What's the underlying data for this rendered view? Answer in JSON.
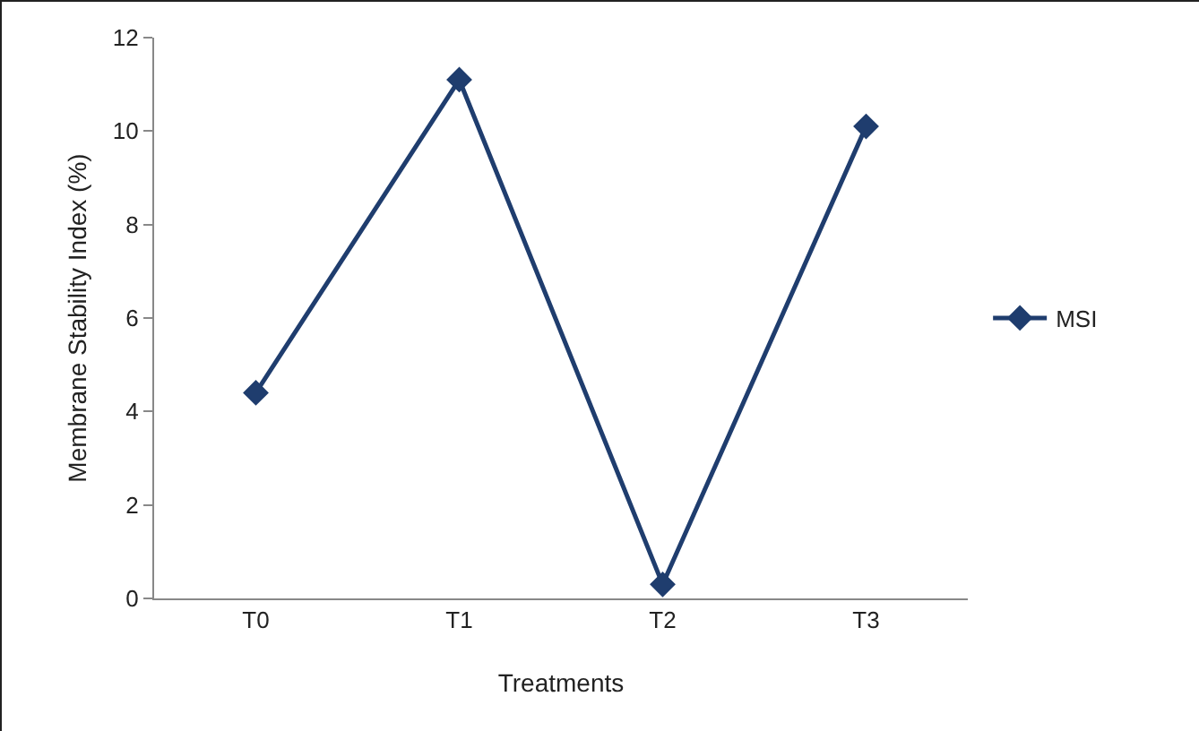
{
  "chart_data": {
    "type": "line",
    "xlabel": "Treatments",
    "ylabel": "Membrane Stability Index (%)",
    "categories": [
      "T0",
      "T1",
      "T2",
      "T3"
    ],
    "series": [
      {
        "name": "MSI",
        "color": "#1f3d6e",
        "values": [
          4.4,
          11.1,
          0.3,
          10.1
        ]
      }
    ],
    "ylim": [
      0,
      12
    ],
    "yticks": [
      0,
      2,
      4,
      6,
      8,
      10,
      12
    ],
    "grid": false,
    "legend": "right",
    "marker": "diamond",
    "line_style": "solid"
  }
}
